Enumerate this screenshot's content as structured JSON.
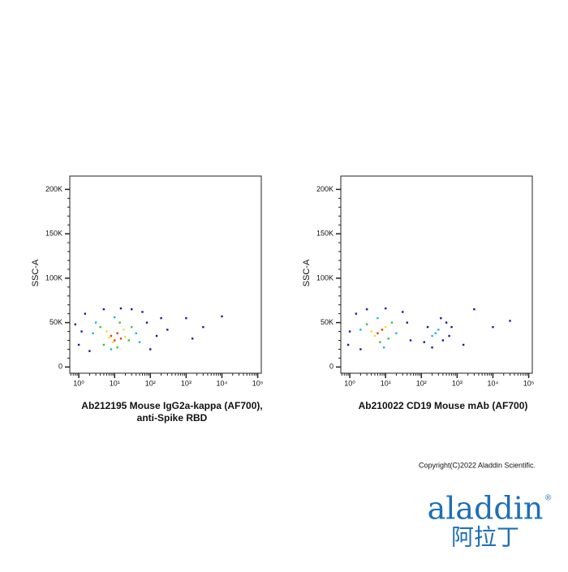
{
  "chart_data": [
    {
      "type": "scatter",
      "title": [
        "Ab212195 Mouse IgG2a-kappa (AF700),",
        "anti-Spike RBD"
      ],
      "y_label": "SSC-A",
      "xscale": "log",
      "xlim": [
        0.56,
        126000
      ],
      "ylim": [
        -7000,
        215000
      ],
      "xticks": [
        {
          "value": 1,
          "label": "10⁰"
        },
        {
          "value": 10,
          "label": "10¹"
        },
        {
          "value": 100,
          "label": "10²"
        },
        {
          "value": 1000,
          "label": "10³"
        },
        {
          "value": 10000,
          "label": "10⁴"
        },
        {
          "value": 100000,
          "label": "10⁵"
        }
      ],
      "yticks": [
        0,
        {
          "value": 50000,
          "label": "50K"
        },
        {
          "value": 100000,
          "label": "100K"
        },
        {
          "value": 150000,
          "label": "150K"
        },
        {
          "value": 200000,
          "label": "200K"
        }
      ],
      "series": [
        {
          "color": "#1a1aa0",
          "x": [
            1.2,
            1.5,
            80,
            150,
            1,
            200,
            5,
            30,
            100,
            2,
            60,
            0.8,
            300,
            1000,
            3000,
            10000,
            15,
            1500
          ],
          "y": [
            40000,
            60000,
            50000,
            35000,
            25000,
            55000,
            65000,
            65000,
            20000,
            18000,
            62000,
            48000,
            42000,
            55000,
            45000,
            57000,
            66000,
            32000
          ]
        },
        {
          "color": "#20b0e0",
          "x": [
            2.5,
            40,
            3,
            10,
            50,
            8
          ],
          "y": [
            38000,
            38000,
            50000,
            56000,
            28000,
            20000
          ]
        },
        {
          "color": "#40c040",
          "x": [
            4,
            25,
            5,
            30,
            14,
            12
          ],
          "y": [
            45000,
            30000,
            25000,
            45000,
            50000,
            22000
          ]
        },
        {
          "color": "#f0e020",
          "x": [
            6,
            18,
            9,
            20,
            7
          ],
          "y": [
            40000,
            42000,
            28000,
            34000,
            33000
          ]
        },
        {
          "color": "#e8321e",
          "x": [
            8,
            12,
            15,
            10
          ],
          "y": [
            35000,
            38000,
            32000,
            30000
          ]
        }
      ]
    },
    {
      "type": "scatter",
      "title": [
        "Ab210022 CD19 Mouse mAb (AF700)"
      ],
      "y_label": "SSC-A",
      "xscale": "log",
      "xlim": [
        0.56,
        126000
      ],
      "ylim": [
        -7000,
        215000
      ],
      "xticks": [
        {
          "value": 1,
          "label": "10⁰"
        },
        {
          "value": 10,
          "label": "10¹"
        },
        {
          "value": 100,
          "label": "10²"
        },
        {
          "value": 1000,
          "label": "10³"
        },
        {
          "value": 10000,
          "label": "10⁴"
        },
        {
          "value": 100000,
          "label": "10⁵"
        }
      ],
      "yticks": [
        0,
        {
          "value": 50000,
          "label": "50K"
        },
        {
          "value": 100000,
          "label": "100K"
        },
        {
          "value": 150000,
          "label": "150K"
        },
        {
          "value": 200000,
          "label": "200K"
        }
      ],
      "series": [
        {
          "color": "#1a1aa0",
          "x": [
            1,
            1.5,
            40,
            0.9,
            3,
            30,
            50,
            2,
            10,
            150,
            400,
            500,
            120,
            350,
            600,
            200,
            700,
            3000,
            10000,
            30000,
            1500
          ],
          "y": [
            40000,
            60000,
            50000,
            25000,
            65000,
            62000,
            30000,
            20000,
            66000,
            45000,
            30000,
            50000,
            28000,
            55000,
            35000,
            22000,
            45000,
            65000,
            45000,
            52000,
            25000
          ]
        },
        {
          "color": "#20b0e0",
          "x": [
            2,
            20,
            6,
            9,
            250,
            300,
            200
          ],
          "y": [
            42000,
            38000,
            55000,
            22000,
            38000,
            42000,
            35000
          ]
        },
        {
          "color": "#40c040",
          "x": [
            3,
            12,
            7,
            15
          ],
          "y": [
            48000,
            32000,
            28000,
            50000
          ]
        },
        {
          "color": "#f0e020",
          "x": [
            5,
            10,
            4
          ],
          "y": [
            35000,
            45000,
            40000
          ]
        },
        {
          "color": "#e8321e",
          "x": [
            6,
            8
          ],
          "y": [
            38000,
            42000
          ]
        }
      ]
    }
  ],
  "footer": {
    "copyright": "Copyright(C)2022 Aladdin Scientific.",
    "logo": "aladdin",
    "registered": "®",
    "logo_cn": "阿拉丁"
  }
}
